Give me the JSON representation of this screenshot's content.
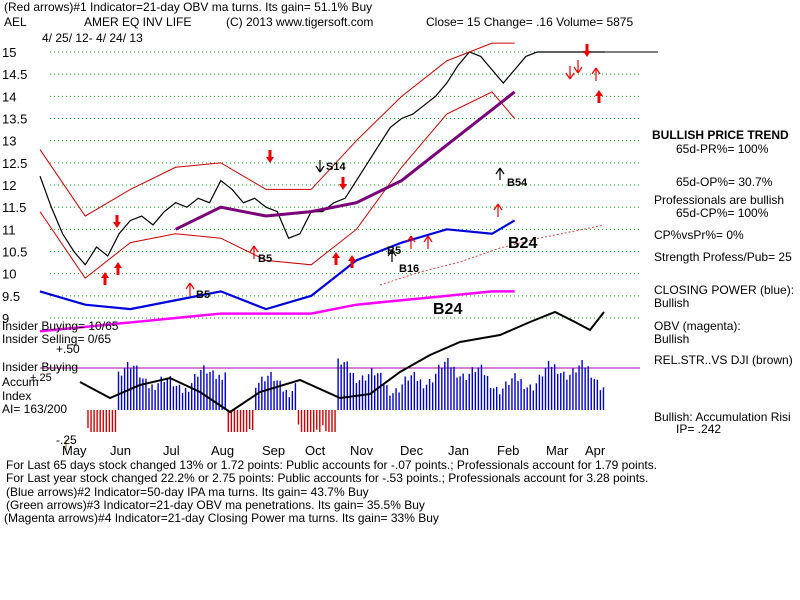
{
  "header": {
    "line1": "(Red arrows)#1 Indicator=21-day OBV ma turns. Its gain= 51.1% Buy",
    "ticker": "AEL",
    "company": "AMER EQ INV LIFE",
    "copyright": "(C) 2013 www.tigersoft.com",
    "quote": "Close=  15  Change= .16 Volume= 5875",
    "daterange": "4/ 25/ 12- 4/ 24/ 13"
  },
  "sidebar": {
    "trend_title": "BULLISH PRICE TREND",
    "pr": "65d-PR%= 100%",
    "op": "65d-OP%= 30.7%",
    "pros": "Professionals are bullish",
    "cp": "65d-CP%= 100%",
    "cpvspr": "CP%vsPr%=  0%",
    "strength": "Strength Profess/Pub= 25",
    "closing_power": "CLOSING POWER (blue):",
    "closing_power_val": "Bullish",
    "obv": "OBV (magenta):",
    "obv_val": "Bullish",
    "relstr": "REL.STR..VS DJI (brown)",
    "accum": "Bullish: Accumulation Risi",
    "ip": "IP=  .242"
  },
  "left_panel": {
    "insider_buying": "Insider Buying= 10/65",
    "insider_selling": "Insider Selling= 0/65",
    "plus50": "+.50",
    "insider_buying2": "Insider Buying",
    "accum": "Accum",
    "index": "Index",
    "ai": "AI= 163/200",
    "minus25": "-.25",
    "plus25": "+.25"
  },
  "footer": {
    "line1": "For Last 65 days stock changed  13% or  1.72 points:  Public accounts for -.07 points.;  Professionals account for  1.79 points.",
    "line2": "For Last year stock changed  22.2% or  2.75 points:  Public accounts for -.53 points.;  Professionals account for  3.28 points.",
    "line3": "(Blue arrows)#2 Indicator=50-day IPA ma turns. Its gain= 43.7% Buy",
    "line4": "(Green arrows)#3 Indicator=21-day OBV ma penetrations. Its gain= 35.5% Buy",
    "line5": "(Magenta arrows)#4 Indicator=21-day Closing Power ma turns. Its gain= 33% Buy"
  },
  "chart_data": {
    "type": "line",
    "title": "AMER EQ INV LIFE",
    "y_ticks": [
      "15",
      "14.5",
      "14",
      "13.5",
      "13",
      "12.5",
      "12",
      "11.5",
      "11",
      "10.5",
      "10",
      "9.5",
      "9"
    ],
    "ylim": [
      9,
      15.2
    ],
    "months": [
      "May",
      "Jun",
      "Jul",
      "Aug",
      "Sep",
      "Oct",
      "Nov",
      "Dec",
      "Jan",
      "Feb",
      "Mar",
      "Apr"
    ],
    "annotations": [
      "S14",
      "B54",
      "B24",
      "B24",
      "B5",
      "B5",
      "B16",
      "B5"
    ],
    "colors": {
      "price": "#000000",
      "bands": "#cc0000",
      "ma": "#7a007a",
      "closing_power": "#0000dd",
      "obv": "#ff00ff",
      "accum": "#0000cc",
      "distrib": "#cc0000",
      "grid": "#00aa00"
    },
    "series": [
      {
        "name": "Close",
        "x": [
          0,
          5,
          10,
          15,
          20,
          25,
          30,
          35,
          40,
          45,
          50,
          55,
          60,
          65,
          70,
          75,
          80,
          85,
          90,
          95,
          100,
          105,
          110,
          115,
          120,
          125,
          130,
          135,
          140,
          145,
          150,
          155,
          160,
          165,
          170,
          175,
          180,
          185,
          190,
          195,
          200,
          205,
          210,
          215,
          220,
          225,
          230,
          235,
          240,
          245,
          250
        ],
        "values": [
          12.2,
          11.5,
          10.9,
          10.5,
          10.2,
          10.6,
          10.4,
          10.9,
          11.2,
          11.3,
          11.1,
          11.4,
          11.6,
          11.5,
          11.7,
          11.6,
          12.1,
          11.9,
          11.6,
          11.7,
          11.5,
          11.4,
          10.8,
          10.9,
          11.4,
          11.4,
          11.6,
          11.7,
          12.1,
          12.5,
          12.9,
          13.3,
          13.5,
          13.6,
          13.8,
          14.0,
          14.3,
          14.7,
          15.0,
          14.9,
          14.6,
          14.3,
          14.6,
          14.9,
          15.0,
          15.0,
          15.0,
          15.0,
          15.0,
          15.0,
          15.0
        ]
      },
      {
        "name": "Upper band",
        "x": [
          0,
          20,
          40,
          60,
          80,
          100,
          120,
          140,
          160,
          180,
          200,
          210
        ],
        "values": [
          12.8,
          11.3,
          11.9,
          12.4,
          12.5,
          11.9,
          11.9,
          13.0,
          14.0,
          14.8,
          15.2,
          15.2
        ]
      },
      {
        "name": "Lower band",
        "x": [
          0,
          20,
          40,
          60,
          80,
          100,
          120,
          140,
          160,
          180,
          200,
          210
        ],
        "values": [
          11.4,
          9.9,
          10.7,
          10.9,
          10.8,
          10.3,
          10.2,
          11.0,
          12.4,
          13.6,
          14.1,
          13.5
        ]
      },
      {
        "name": "50-day MA",
        "x": [
          60,
          80,
          100,
          120,
          140,
          160,
          180,
          200,
          210
        ],
        "values": [
          11.0,
          11.5,
          11.3,
          11.4,
          11.6,
          12.1,
          12.9,
          13.7,
          14.1
        ]
      },
      {
        "name": "Closing Power",
        "x": [
          0,
          20,
          40,
          60,
          80,
          100,
          120,
          140,
          160,
          180,
          200,
          210
        ],
        "values": [
          9.6,
          9.3,
          9.2,
          9.4,
          9.6,
          9.2,
          9.5,
          10.3,
          10.7,
          11.0,
          10.9,
          11.2
        ]
      },
      {
        "name": "OBV",
        "x": [
          0,
          20,
          40,
          60,
          80,
          100,
          120,
          140,
          160,
          180,
          200,
          210
        ],
        "values": [
          8.7,
          8.8,
          8.9,
          9.0,
          9.1,
          9.1,
          9.1,
          9.3,
          9.4,
          9.5,
          9.6,
          9.6
        ]
      }
    ]
  }
}
